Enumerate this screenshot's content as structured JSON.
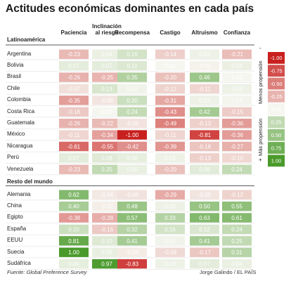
{
  "title": "Actitudes económicas dominantes en cada país",
  "source": "Fuente: Global Preference Survey",
  "credit": "Jorge Galindo / EL PAÍS",
  "legend": {
    "minus": "-",
    "plus": "+",
    "low_label": "Menos propensión",
    "high_label": "Más propensión",
    "values": [
      "-1.00",
      "-0.75",
      "-0.50",
      "-0.25",
      "0.00",
      "0.25",
      "0.50",
      "0.75",
      "1.00"
    ]
  },
  "colors": {
    "negative": "#c8201e",
    "positive": "#4a9a2b",
    "neutral": "#f6f6f0"
  },
  "chart_data": {
    "type": "heatmap",
    "columns": [
      "Paciencia",
      "Inclinación al riesgo",
      "Recompensa",
      "Castigo",
      "Altruismo",
      "Confianza"
    ],
    "column_lines": [
      [
        "Paciencia"
      ],
      [
        "Inclinación",
        "al riesgo"
      ],
      [
        "Recompensa"
      ],
      [
        "Castigo"
      ],
      [
        "Altruismo"
      ],
      [
        "Confianza"
      ]
    ],
    "scale": [
      -1,
      1
    ],
    "groups": [
      {
        "name": "Latinoamérica",
        "rows": [
          {
            "label": "Argentina",
            "values": [
              -0.23,
              0.04,
              0.16,
              -0.14,
              0.03,
              -0.21
            ]
          },
          {
            "label": "Bolivia",
            "values": [
              0.07,
              0.07,
              0.11,
              0.0,
              -0.01,
              0.04
            ]
          },
          {
            "label": "Brasil",
            "values": [
              -0.26,
              -0.25,
              0.35,
              -0.2,
              0.46,
              0.0
            ]
          },
          {
            "label": "Chile",
            "values": [
              -0.07,
              0.13,
              0.02,
              -0.12,
              -0.11,
              0.03
            ]
          },
          {
            "label": "Colombia",
            "values": [
              -0.35,
              -0.05,
              0.2,
              -0.31,
              0.03,
              0.01
            ]
          },
          {
            "label": "Costa Rica",
            "values": [
              -0.16,
              0.0,
              0.24,
              -0.43,
              0.42,
              -0.15
            ]
          },
          {
            "label": "Guatemala",
            "values": [
              -0.26,
              -0.22,
              -0.06,
              -0.49,
              -0.13,
              -0.36
            ]
          },
          {
            "label": "México",
            "values": [
              -0.11,
              -0.34,
              -1.0,
              -0.11,
              -0.81,
              -0.36
            ]
          },
          {
            "label": "Nicaragua",
            "values": [
              -0.61,
              -0.55,
              -0.42,
              -0.39,
              -0.18,
              -0.27
            ]
          },
          {
            "label": "Perú",
            "values": [
              0.07,
              0.09,
              0.06,
              0.03,
              -0.13,
              -0.1
            ]
          },
          {
            "label": "Venezuela",
            "values": [
              -0.23,
              0.25,
              0.05,
              -0.2,
              0.08,
              0.24
            ]
          }
        ]
      },
      {
        "name": "Resto del mundo",
        "rows": [
          {
            "label": "Alemania",
            "values": [
              0.62,
              -0.04,
              -0.06,
              -0.29,
              -0.05,
              -0.12
            ]
          },
          {
            "label": "China",
            "values": [
              0.4,
              -0.02,
              0.48,
              0.03,
              0.5,
              0.55
            ]
          },
          {
            "label": "Egipto",
            "values": [
              -0.38,
              -0.28,
              0.57,
              0.33,
              0.63,
              0.61
            ]
          },
          {
            "label": "España",
            "values": [
              0.2,
              -0.16,
              0.32,
              0.16,
              0.12,
              0.24
            ]
          },
          {
            "label": "EEUU",
            "values": [
              0.81,
              0.1,
              0.41,
              0.02,
              0.41,
              0.25
            ]
          },
          {
            "label": "Suecia",
            "values": [
              1.0,
              0.05,
              -0.03,
              -0.09,
              -0.17,
              0.31
            ]
          },
          {
            "label": "Sudáfrica",
            "values": [
              0.06,
              0.97,
              -0.83,
              0.03,
              0.07,
              0.04
            ]
          }
        ]
      }
    ]
  }
}
